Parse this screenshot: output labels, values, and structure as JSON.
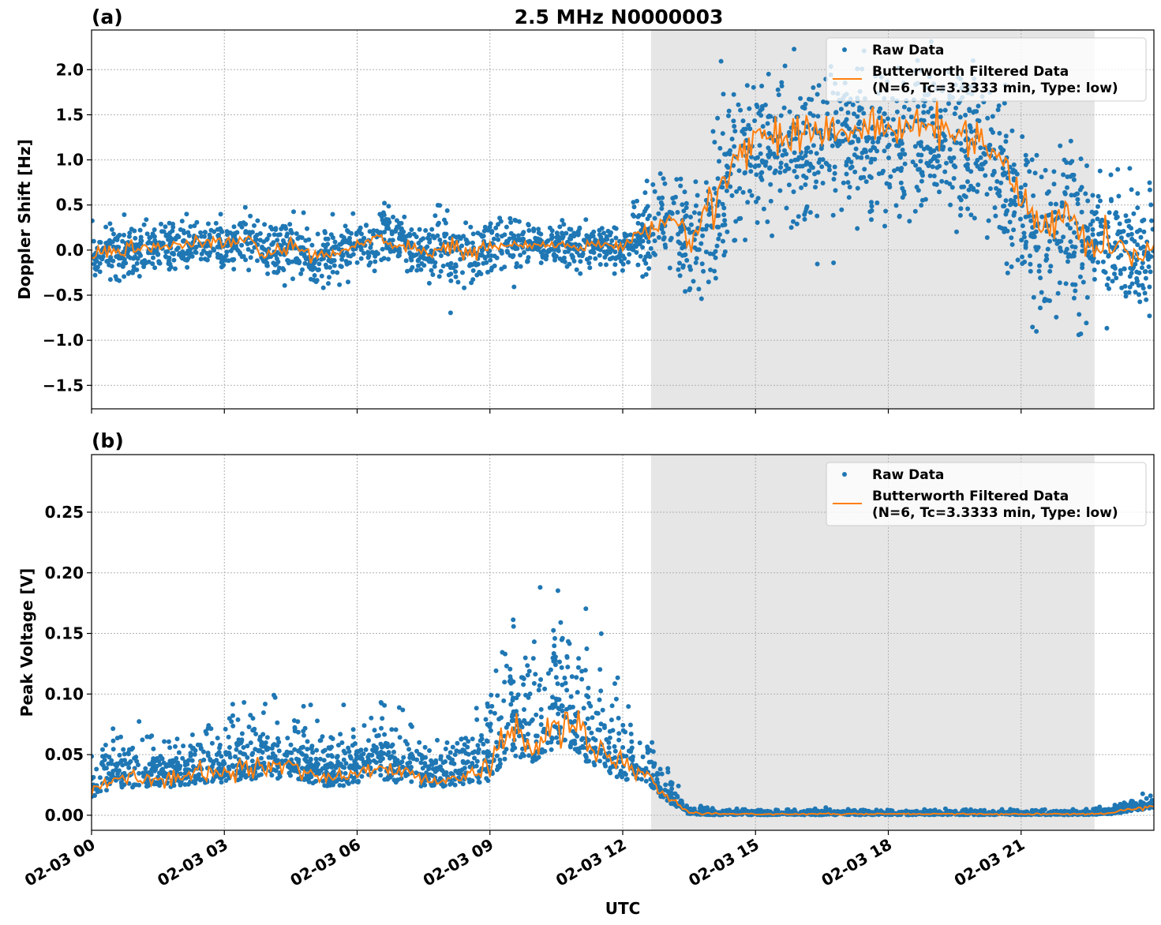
{
  "chart_data": [
    {
      "type": "scatter",
      "panel_label": "(a)",
      "title": "2.5 MHz N0000003",
      "xlabel": "",
      "ylabel": "Doppler Shift [Hz]",
      "xlim_hours": [
        0,
        24
      ],
      "ylim": [
        -1.76,
        2.44
      ],
      "yticks": [
        -1.5,
        -1.0,
        -0.5,
        0.0,
        0.5,
        1.0,
        1.5,
        2.0
      ],
      "ytick_labels": [
        "−1.5",
        "−1.0",
        "−0.5",
        "0.0",
        "0.5",
        "1.0",
        "1.5",
        "2.0"
      ],
      "grid": true,
      "shaded_region_hours": [
        12.64,
        22.66
      ],
      "legend": {
        "placement": "top-right",
        "entries": [
          "Raw Data",
          "Butterworth Filtered Data",
          "(N=6, Tc=3.3333 min, Type: low)"
        ]
      },
      "series": [
        {
          "name": "Butterworth Filtered Data",
          "color": "#ff7f0e",
          "x_hours_step": 0.5,
          "values": [
            -0.05,
            -0.03,
            0.0,
            0.05,
            0.05,
            0.08,
            0.08,
            0.1,
            -0.05,
            0.05,
            -0.1,
            -0.05,
            0.05,
            0.15,
            0.05,
            -0.05,
            0.05,
            -0.05,
            0.05,
            0.05,
            0.05,
            0.05,
            0.05,
            0.05,
            0.05,
            0.2,
            0.35,
            0.1,
            0.5,
            1.0,
            1.25,
            1.3,
            1.3,
            1.35,
            1.3,
            1.35,
            1.35,
            1.35,
            1.35,
            1.3,
            1.3,
            1.0,
            0.6,
            0.2,
            0.5,
            0.05,
            0.05,
            0.0,
            -0.05
          ]
        },
        {
          "name": "Raw Data",
          "color": "#1f77b4",
          "x_hours_step": 0.5,
          "spread": [
            0.25,
            0.25,
            0.25,
            0.25,
            0.25,
            0.25,
            0.25,
            0.3,
            0.3,
            0.3,
            0.3,
            0.25,
            0.25,
            0.3,
            0.3,
            0.3,
            0.35,
            0.35,
            0.25,
            0.25,
            0.2,
            0.2,
            0.2,
            0.2,
            0.25,
            0.35,
            0.5,
            0.6,
            0.7,
            0.7,
            0.7,
            0.7,
            0.7,
            0.7,
            0.7,
            0.7,
            0.7,
            0.7,
            0.7,
            0.7,
            0.7,
            0.7,
            0.7,
            0.7,
            0.7,
            0.6,
            0.6,
            0.6,
            0.6
          ]
        }
      ]
    },
    {
      "type": "scatter",
      "panel_label": "(b)",
      "xlabel": "UTC",
      "ylabel": "Peak Voltage [V]",
      "xlim_hours": [
        0,
        24
      ],
      "ylim": [
        -0.0124,
        0.2975
      ],
      "yticks": [
        0.0,
        0.05,
        0.1,
        0.15,
        0.2,
        0.25
      ],
      "ytick_labels": [
        "0.00",
        "0.05",
        "0.10",
        "0.15",
        "0.20",
        "0.25"
      ],
      "xticks_hours": [
        0,
        3,
        6,
        9,
        12,
        15,
        18,
        21
      ],
      "xtick_labels": [
        "02-03 00",
        "02-03 03",
        "02-03 06",
        "02-03 09",
        "02-03 12",
        "02-03 15",
        "02-03 18",
        "02-03 21"
      ],
      "grid": true,
      "shaded_region_hours": [
        12.64,
        22.66
      ],
      "legend": {
        "placement": "top-right",
        "entries": [
          "Raw Data",
          "Butterworth Filtered Data",
          "(N=6, Tc=3.3333 min, Type: low)"
        ]
      },
      "series": [
        {
          "name": "Butterworth Filtered Data",
          "color": "#ff7f0e",
          "x_hours_step": 0.5,
          "values": [
            0.02,
            0.03,
            0.03,
            0.03,
            0.03,
            0.035,
            0.035,
            0.04,
            0.04,
            0.04,
            0.035,
            0.03,
            0.035,
            0.04,
            0.035,
            0.03,
            0.03,
            0.035,
            0.04,
            0.07,
            0.06,
            0.075,
            0.07,
            0.05,
            0.04,
            0.035,
            0.015,
            0.002,
            0.001,
            0.001,
            0.001,
            0.001,
            0.001,
            0.001,
            0.001,
            0.001,
            0.001,
            0.001,
            0.001,
            0.001,
            0.001,
            0.001,
            0.001,
            0.001,
            0.001,
            0.001,
            0.002,
            0.005,
            0.008
          ]
        },
        {
          "name": "Raw Data",
          "color": "#1f77b4",
          "x_hours_step": 0.5,
          "spread": [
            0.015,
            0.02,
            0.02,
            0.02,
            0.02,
            0.025,
            0.025,
            0.03,
            0.03,
            0.025,
            0.025,
            0.02,
            0.025,
            0.03,
            0.025,
            0.02,
            0.02,
            0.025,
            0.035,
            0.06,
            0.05,
            0.06,
            0.06,
            0.04,
            0.03,
            0.025,
            0.012,
            0.003,
            0.002,
            0.002,
            0.002,
            0.002,
            0.002,
            0.002,
            0.002,
            0.002,
            0.002,
            0.002,
            0.002,
            0.002,
            0.002,
            0.002,
            0.002,
            0.002,
            0.002,
            0.002,
            0.003,
            0.005,
            0.007
          ]
        }
      ]
    }
  ]
}
